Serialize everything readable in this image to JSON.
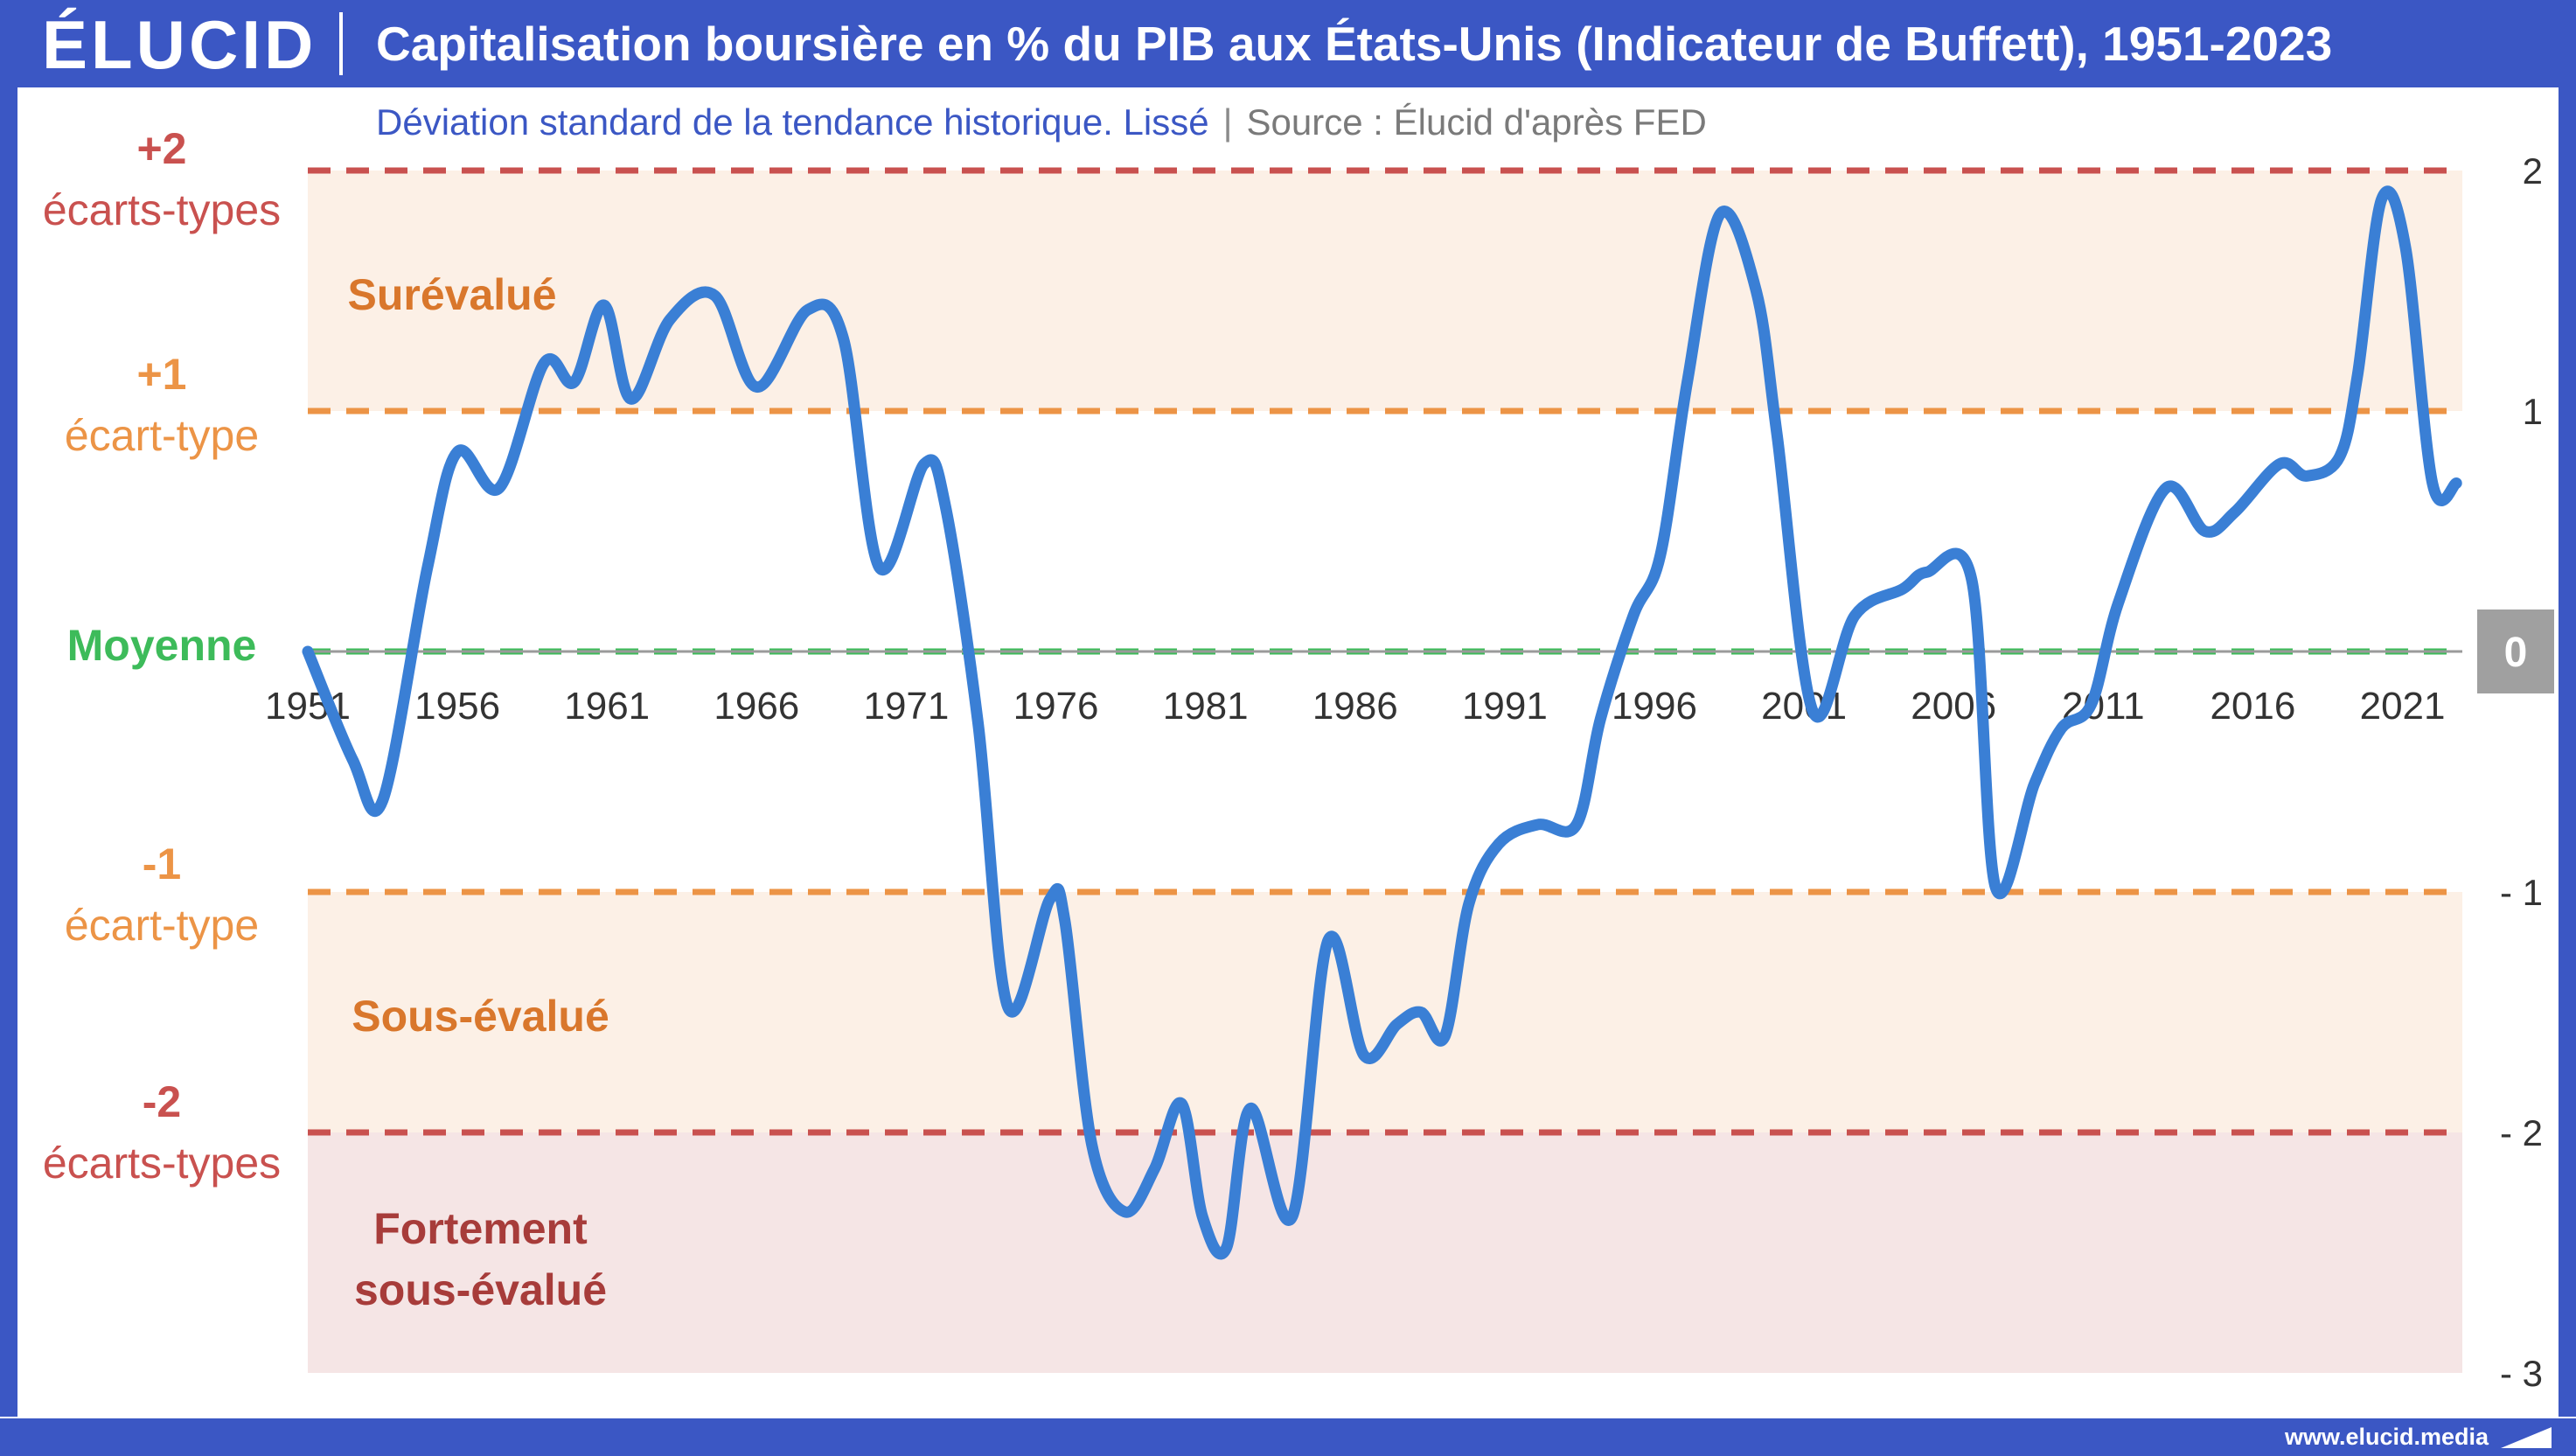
{
  "header": {
    "logo_text": "ÉLUCID",
    "title": "Capitalisation boursière en % du PIB aux États-Unis (Indicateur de Buffett), 1951-2023"
  },
  "subtitle": {
    "note": "Déviation standard de la tendance historique. Lissé",
    "separator": "|",
    "source": "Source : Élucid d'après FED"
  },
  "footer": {
    "url": "www.elucid.media"
  },
  "labels": {
    "plus2": {
      "value": "+2",
      "text": "écarts-types"
    },
    "plus1": {
      "value": "+1",
      "text": "écart-type"
    },
    "mean": "Moyenne",
    "minus1": {
      "value": "-1",
      "text": "écart-type"
    },
    "minus2": {
      "value": "-2",
      "text": "écarts-types"
    },
    "overvalued": "Surévalué",
    "undervalued": "Sous-évalué",
    "strongly_undervalued": [
      "Fortement",
      "sous-évalué"
    ]
  },
  "colors": {
    "brand": "#3b57c4",
    "series": "#3a7fd5",
    "mean": "#3dbb5a",
    "one_sd": "#ec9446",
    "two_sd": "#c9514f",
    "band_over": "#fcf0e6",
    "band_strong": "#f5e5e5",
    "overvalued_text": "#d9772c",
    "strong_text": "#a73c3a",
    "zero_badge": "#a0a0a0"
  },
  "chart_data": {
    "type": "line",
    "title": "Capitalisation boursière en % du PIB aux États-Unis (Indicateur de Buffett), 1951-2023",
    "xlabel": "",
    "ylabel": "",
    "xlim": [
      1951,
      2023
    ],
    "ylim": [
      -3,
      2
    ],
    "x_ticks": [
      1951,
      1956,
      1961,
      1966,
      1971,
      1976,
      1981,
      1986,
      1991,
      1996,
      2001,
      2006,
      2011,
      2016,
      2021
    ],
    "y_ticks": [
      2,
      1,
      0,
      -1,
      -2,
      -3
    ],
    "y_tick_labels": [
      "2",
      "1",
      "0",
      "- 1",
      "- 2",
      "- 3"
    ],
    "reference_lines": [
      {
        "value": 2,
        "style": "dashed",
        "color": "#c9514f"
      },
      {
        "value": 1,
        "style": "dashed",
        "color": "#ec9446"
      },
      {
        "value": 0,
        "style": "dashed",
        "color": "#3dbb5a"
      },
      {
        "value": -1,
        "style": "dashed",
        "color": "#ec9446"
      },
      {
        "value": -2,
        "style": "dashed",
        "color": "#c9514f"
      }
    ],
    "grid": false,
    "series": [
      {
        "x": [
          1951,
          1952.5,
          1953.5,
          1955,
          1956,
          1957.4,
          1958.9,
          1959.9,
          1960.9,
          1961.8,
          1963.1,
          1964.6,
          1966,
          1967.7,
          1968.9,
          1970.1,
          1971.6,
          1972.3,
          1973.4,
          1974.4,
          1975.8,
          1976.3,
          1977.2,
          1978.3,
          1979.3,
          1980.2,
          1980.9,
          1981.7,
          1982.5,
          1983.9,
          1985.1,
          1986.3,
          1987.4,
          1988.2,
          1989,
          1989.8,
          1990.8,
          1992.1,
          1993.4,
          1994.2,
          1995.3,
          1996.2,
          1997.1,
          1998.2,
          1999.4,
          2000.1,
          2001.3,
          2002.7,
          2004.3,
          2005.1,
          2006.6,
          2007.4,
          2008.7,
          2009.6,
          2010.6,
          2011.5,
          2013.1,
          2014.4,
          2015.4,
          2016.9,
          2017.8,
          2018.9,
          2019.5,
          2020.3,
          2021.1,
          2022,
          2022.8
        ],
        "y": [
          0,
          -0.45,
          -0.62,
          0.35,
          0.83,
          0.68,
          1.2,
          1.12,
          1.44,
          1.05,
          1.38,
          1.48,
          1.1,
          1.42,
          1.3,
          0.35,
          0.78,
          0.61,
          -0.3,
          -1.48,
          -1.03,
          -1.12,
          -2.05,
          -2.33,
          -2.15,
          -1.88,
          -2.35,
          -2.48,
          -1.9,
          -2.35,
          -1.2,
          -1.68,
          -1.55,
          -1.5,
          -1.6,
          -1.05,
          -0.8,
          -0.72,
          -0.72,
          -0.28,
          0.15,
          0.4,
          1.12,
          1.82,
          1.5,
          0.9,
          -0.25,
          0.15,
          0.26,
          0.33,
          0.3,
          -0.98,
          -0.55,
          -0.32,
          -0.22,
          0.2,
          0.68,
          0.5,
          0.58,
          0.78,
          0.73,
          0.81,
          1.15,
          1.88,
          1.68,
          0.7,
          0.7
        ]
      }
    ]
  }
}
